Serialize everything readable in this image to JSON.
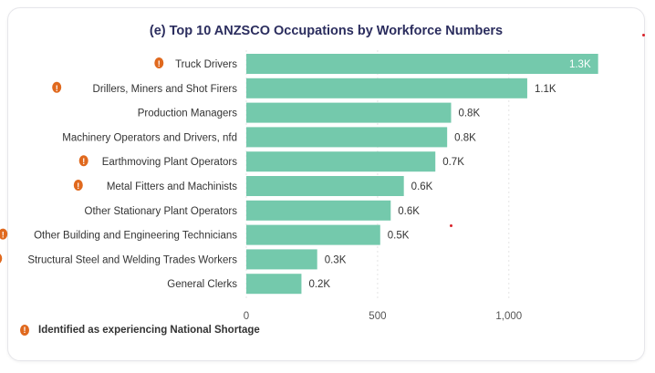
{
  "colors": {
    "bar": "#74c9ac",
    "shortage_icon": "#e0691e",
    "title": "#2b2d5e",
    "label": "#333333",
    "grid": "#e4e4e4",
    "axis": "#555555",
    "marker": "#d9232a"
  },
  "legend": {
    "icon": "exclamation-circle-icon",
    "text": "Identified as experiencing National Shortage"
  },
  "chart_data": {
    "type": "bar",
    "orientation": "horizontal",
    "title": "(e) Top 10 ANZSCO Occupations by Workforce Numbers",
    "xlim": [
      0,
      1400
    ],
    "xticks": [
      0,
      500,
      1000
    ],
    "xtick_labels": [
      "0",
      "500",
      "1,000"
    ],
    "grid": true,
    "legend_position": "bottom-left",
    "categories": [
      "Truck Drivers",
      "Drillers, Miners and Shot Firers",
      "Production Managers",
      "Machinery Operators and Drivers, nfd",
      "Earthmoving Plant Operators",
      "Metal Fitters and Machinists",
      "Other Stationary Plant Operators",
      "Other Building and Engineering Technicians",
      "Structural Steel and Welding Trades Workers",
      "General Clerks"
    ],
    "values": [
      1340,
      1070,
      780,
      765,
      720,
      600,
      550,
      510,
      270,
      210
    ],
    "data_labels": [
      "1.3K",
      "1.1K",
      "0.8K",
      "0.8K",
      "0.7K",
      "0.6K",
      "0.6K",
      "0.5K",
      "0.3K",
      "0.2K"
    ],
    "shortage": [
      true,
      true,
      false,
      false,
      true,
      true,
      false,
      true,
      true,
      false
    ]
  }
}
